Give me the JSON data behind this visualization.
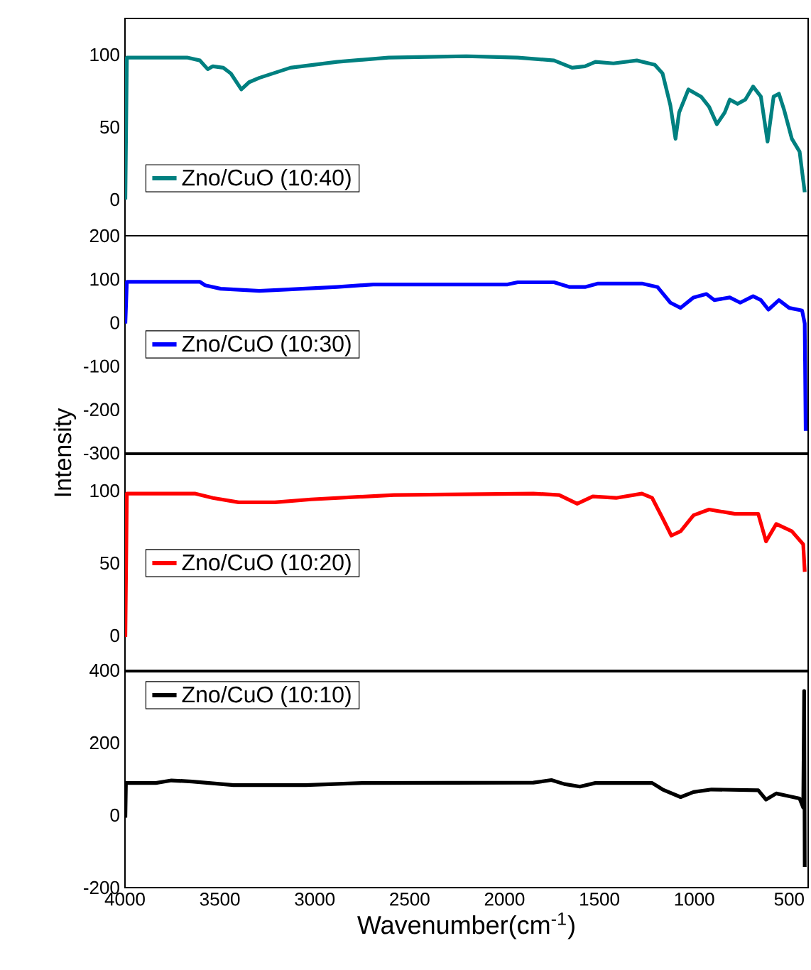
{
  "chart_data": [
    {
      "type": "line",
      "xlim": [
        4000,
        400
      ],
      "ylim": [
        -25,
        125
      ],
      "yticks": [
        0,
        50,
        100
      ],
      "tick_labels": "y",
      "legend": "bottom left",
      "series": [
        {
          "name": "Zno/CuO (10:40)",
          "color": "#008080",
          "x": [
            3998,
            3990,
            3673,
            3605,
            3564,
            3537,
            3482,
            3442,
            3387,
            3346,
            3292,
            3128,
            2883,
            2611,
            2202,
            1930,
            1739,
            1644,
            1576,
            1521,
            1426,
            1303,
            1208,
            1167,
            1126,
            1099,
            1080,
            1031,
            964,
            922,
            881,
            840,
            813,
            772,
            731,
            690,
            649,
            614,
            582,
            554,
            527,
            486,
            445,
            418
          ],
          "values": [
            0,
            98,
            98,
            96,
            90,
            92,
            91,
            87,
            76,
            81,
            84,
            91,
            95,
            98,
            99,
            98,
            96,
            91,
            92,
            95,
            94,
            96,
            93,
            87,
            65,
            42,
            60,
            76,
            71,
            64,
            52,
            60,
            69,
            66,
            69,
            78,
            71,
            40,
            71,
            73,
            62,
            42,
            33,
            5
          ]
        }
      ]
    },
    {
      "type": "line",
      "xlim": [
        4000,
        400
      ],
      "ylim": [
        -300,
        200
      ],
      "yticks": [
        -300,
        -200,
        -100,
        0,
        100,
        200
      ],
      "tick_labels": "y",
      "legend": "left",
      "ylabel": "Intensity",
      "series": [
        {
          "name": "Zno/CuO (10:30)",
          "color": "#0000ff",
          "x": [
            3998,
            3990,
            3605,
            3578,
            3496,
            3292,
            3156,
            2883,
            2692,
            1984,
            1930,
            1739,
            1657,
            1576,
            1507,
            1276,
            1194,
            1126,
            1072,
            1004,
            936,
            895,
            813,
            758,
            690,
            649,
            609,
            554,
            500,
            432,
            418,
            413
          ],
          "values": [
            -2,
            94,
            94,
            86,
            78,
            73,
            76,
            82,
            88,
            88,
            93,
            93,
            82,
            82,
            90,
            90,
            82,
            46,
            34,
            58,
            66,
            52,
            58,
            46,
            61,
            52,
            30,
            52,
            34,
            28,
            -2,
            -249
          ]
        }
      ]
    },
    {
      "type": "line",
      "xlim": [
        4000,
        400
      ],
      "ylim": [
        -25,
        125
      ],
      "yticks": [
        0,
        50,
        100
      ],
      "tick_labels": "y",
      "legend": "left",
      "series": [
        {
          "name": "Zno/CuO (10:20)",
          "color": "#ff0000",
          "x": [
            3998,
            3990,
            3632,
            3537,
            3401,
            3210,
            3019,
            2584,
            1848,
            1712,
            1617,
            1535,
            1412,
            1276,
            1222,
            1167,
            1121,
            1072,
            1004,
            922,
            786,
            663,
            622,
            568,
            486,
            426,
            418
          ],
          "values": [
            -1,
            98,
            98,
            95,
            92,
            92,
            94,
            97,
            98,
            97,
            91,
            96,
            95,
            98,
            95,
            81,
            69,
            72,
            83,
            87,
            84,
            84,
            65,
            77,
            72,
            63,
            44
          ]
        }
      ]
    },
    {
      "type": "line",
      "xlim": [
        4000,
        400
      ],
      "ylim": [
        -200,
        400
      ],
      "yticks": [
        -200,
        0,
        200,
        400
      ],
      "xticks": [
        4000,
        3500,
        3000,
        2500,
        2000,
        1500,
        1000,
        500
      ],
      "xlabel": "Wavenumber(cm$^{-1}$)",
      "legend": "top left",
      "series": [
        {
          "name": "Zno/CuO (10:10)",
          "color": "#000000",
          "x": [
            3998,
            3995,
            3837,
            3755,
            3646,
            3428,
            3047,
            2747,
            1848,
            1753,
            1685,
            1603,
            1521,
            1222,
            1167,
            1072,
            1004,
            909,
            663,
            622,
            568,
            514,
            445,
            426,
            421,
            418
          ],
          "values": [
            -7,
            89,
            89,
            96,
            93,
            83,
            83,
            89,
            90,
            97,
            86,
            79,
            89,
            89,
            71,
            50,
            64,
            71,
            69,
            43,
            60,
            54,
            46,
            21,
            343,
            -143
          ]
        }
      ]
    }
  ]
}
